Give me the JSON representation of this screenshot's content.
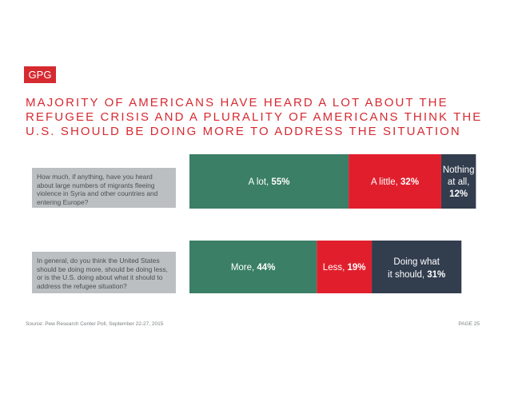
{
  "logo": "GPG",
  "title_lines": [
    "MAJORITY OF AMERICANS HAVE HEARD A LOT ABOUT THE",
    "REFUGEE CRISIS AND A PLURALITY OF AMERICANS THINK THE",
    "U.S. SHOULD BE DOING MORE TO ADDRESS THE SITUATION"
  ],
  "questions": [
    "How much, if anything, have you heard about large numbers of migrants fleeing violence in Syria and other countries and entering Europe?",
    "In general, do you think the United States should be doing more, should be doing less, or is the U.S. doing about what it should to address the refugee situation?"
  ],
  "source": "Source: Pew Research Center Poll, September 22-27, 2015",
  "page_label": "PAGE 25",
  "colors": {
    "green": "#3a7f66",
    "red": "#e11f2c",
    "navy": "#323d4e",
    "brand_red": "#d62a31"
  },
  "chart_data": [
    {
      "type": "bar",
      "orientation": "horizontal-stacked",
      "segments": [
        {
          "label": "A lot,",
          "value": 55,
          "display": "55%",
          "color": "#3a7f66"
        },
        {
          "label": "A little,",
          "value": 32,
          "display": "32%",
          "color": "#e11f2c"
        },
        {
          "label": "Nothing at all,",
          "value": 12,
          "display": "12%",
          "color": "#323d4e"
        }
      ]
    },
    {
      "type": "bar",
      "orientation": "horizontal-stacked",
      "segments": [
        {
          "label": "More,",
          "value": 44,
          "display": "44%",
          "color": "#3a7f66"
        },
        {
          "label": "Less,",
          "value": 19,
          "display": "19%",
          "color": "#e11f2c"
        },
        {
          "label": "Doing what it should,",
          "value": 31,
          "display": "31%",
          "color": "#323d4e"
        }
      ]
    }
  ]
}
